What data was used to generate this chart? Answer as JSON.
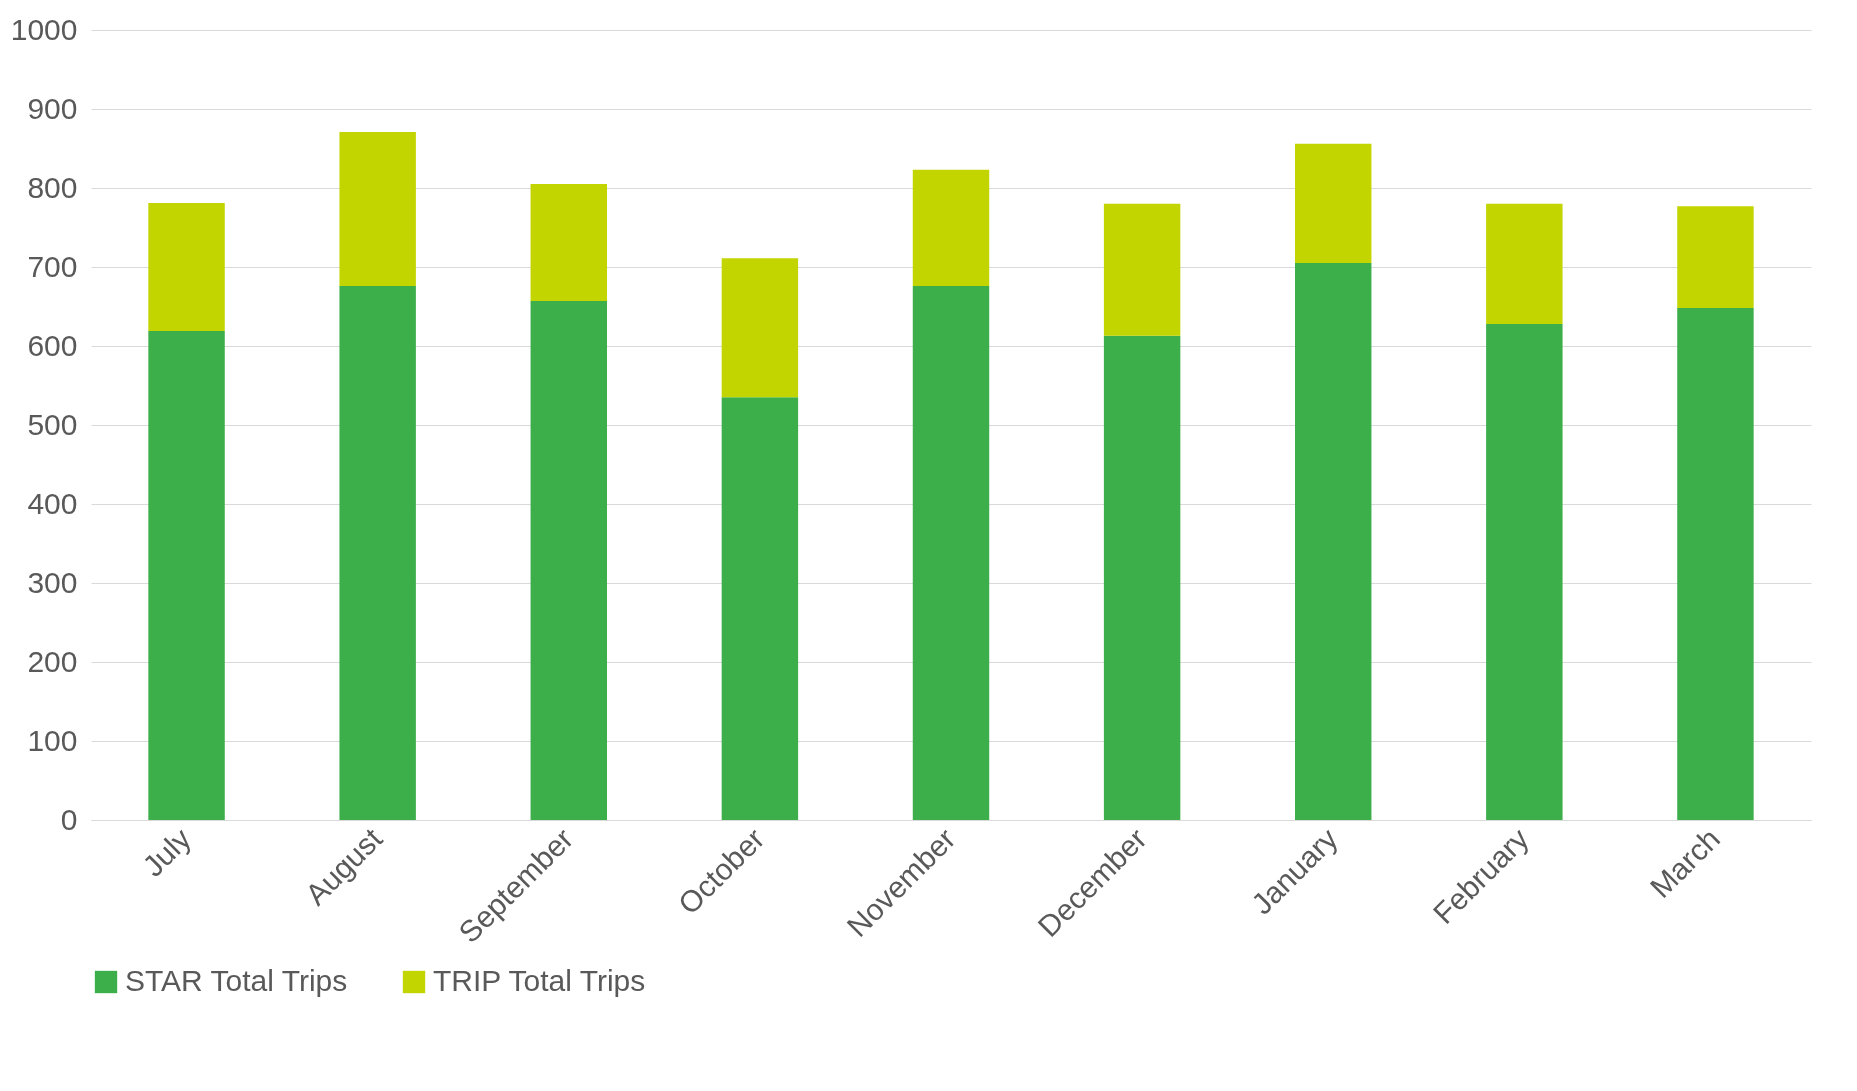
{
  "chart_data": {
    "type": "bar",
    "stacked": true,
    "categories": [
      "July",
      "August",
      "September",
      "October",
      "November",
      "December",
      "January",
      "February",
      "March"
    ],
    "series": [
      {
        "name": "STAR Total Trips",
        "color": "#3cae4a",
        "values": [
          619,
          676,
          657,
          535,
          676,
          613,
          705,
          628,
          648
        ]
      },
      {
        "name": "TRIP Total Trips",
        "color": "#c2d500",
        "values": [
          162,
          195,
          148,
          176,
          147,
          167,
          151,
          152,
          129
        ]
      }
    ],
    "ylim": [
      0,
      1000
    ],
    "yticks": [
      0,
      100,
      200,
      300,
      400,
      500,
      600,
      700,
      800,
      900,
      1000
    ],
    "grid": "y",
    "legend": "bottom"
  }
}
